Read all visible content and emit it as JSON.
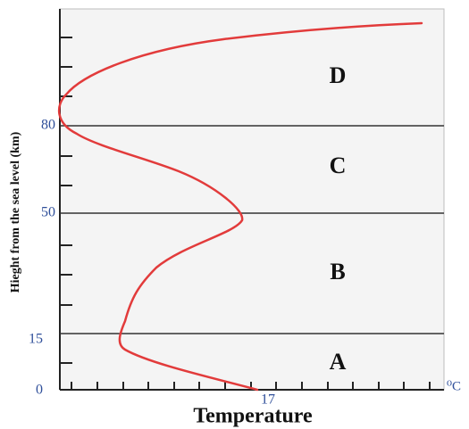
{
  "diagram": {
    "y_axis_label": "Hieght from the sea level (km)",
    "x_axis_label": "Temperature",
    "x_unit": "⁰C",
    "x_tick_label": "17",
    "y_tick_labels": [
      "0",
      "15",
      "50",
      "80"
    ],
    "layers": [
      "A",
      "B",
      "C",
      "D"
    ],
    "curve_color": "#e23b3b",
    "boundary_color": "#333333",
    "panel_color": "#f4f4f4"
  }
}
